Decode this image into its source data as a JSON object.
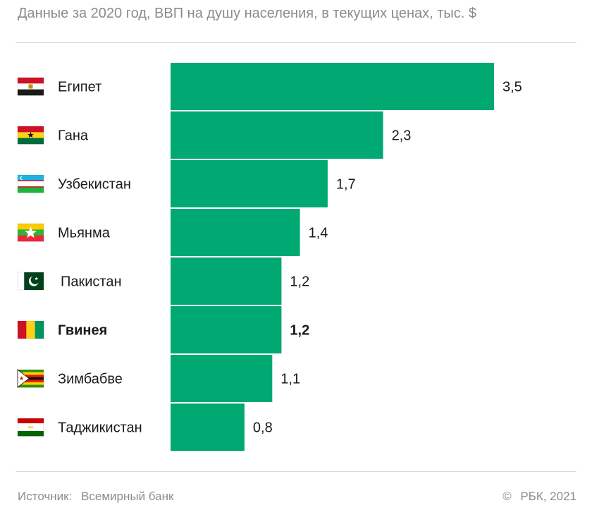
{
  "subtitle": "Данные за 2020 год, ВВП на душу населения, в текущих ценах, тыс. $",
  "chart_data": {
    "type": "bar",
    "orientation": "horizontal",
    "title": "",
    "xlabel": "",
    "ylabel": "",
    "xlim": [
      0,
      3.5
    ],
    "grid": false,
    "bar_color": "#00a872",
    "categories": [
      "Египет",
      "Гана",
      "Узбекистан",
      "Мьянма",
      "Пакистан",
      "Гвинея",
      "Зимбабве",
      "Таджикистан"
    ],
    "values": [
      3.5,
      2.3,
      1.7,
      1.4,
      1.2,
      1.2,
      1.1,
      0.8
    ],
    "value_labels": [
      "3,5",
      "2,3",
      "1,7",
      "1,4",
      "1,2",
      "1,2",
      "1,1",
      "0,8"
    ],
    "highlighted": "Гвинея",
    "flags": [
      "egypt-flag-icon",
      "ghana-flag-icon",
      "uzbekistan-flag-icon",
      "myanmar-flag-icon",
      "pakistan-flag-icon",
      "guinea-flag-icon",
      "zimbabwe-flag-icon",
      "tajikistan-flag-icon"
    ]
  },
  "footer": {
    "source_label": "Источник:",
    "source_value": "Всемирный банк",
    "copyright_symbol": "©",
    "copyright": "РБК, 2021"
  }
}
